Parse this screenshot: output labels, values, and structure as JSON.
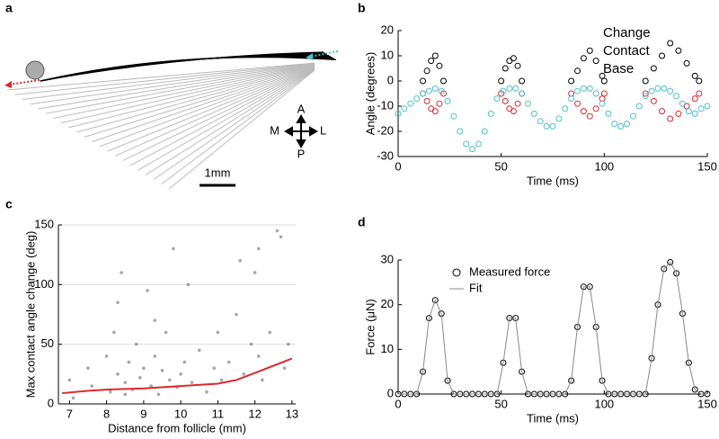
{
  "diagram": {
    "label": "a",
    "compass": {
      "up": "A",
      "down": "P",
      "left": "M",
      "right": "L"
    },
    "scale_bar": "1mm"
  },
  "chart_data": [
    {
      "type": "scatter",
      "label": "b",
      "xlabel": "Time (ms)",
      "ylabel": "Angle (degrees)",
      "xlim": [
        0,
        150
      ],
      "xticks": [
        0,
        50,
        100,
        150
      ],
      "ylim": [
        -30,
        20
      ],
      "yticks": [
        -30,
        -20,
        -10,
        0,
        10,
        20
      ],
      "legend": "top-right",
      "series": [
        {
          "name": "Change",
          "color": "#000000",
          "marker": "circle",
          "x": [
            12,
            14,
            16,
            18,
            20,
            22,
            50,
            52,
            54,
            56,
            58,
            60,
            84,
            87,
            90,
            93,
            96,
            99,
            100,
            120,
            124,
            128,
            132,
            136,
            140,
            144,
            146
          ],
          "values": [
            0,
            4,
            8,
            10,
            6,
            0,
            0,
            5,
            8,
            9,
            6,
            0,
            0,
            4,
            9,
            12,
            8,
            2,
            0,
            0,
            5,
            10,
            15,
            12,
            7,
            2,
            0
          ]
        },
        {
          "name": "Contact",
          "color": "#e0262b",
          "marker": "circle",
          "x": [
            12,
            14,
            16,
            18,
            20,
            22,
            50,
            52,
            54,
            56,
            58,
            60,
            84,
            87,
            90,
            93,
            96,
            99,
            100,
            120,
            124,
            128,
            132,
            136,
            140,
            144,
            146
          ],
          "values": [
            -5,
            -8,
            -11,
            -12,
            -9,
            -5,
            -5,
            -8,
            -11,
            -12,
            -9,
            -5,
            -5,
            -9,
            -12,
            -14,
            -11,
            -7,
            -5,
            -5,
            -8,
            -12,
            -15,
            -13,
            -10,
            -7,
            -5
          ]
        },
        {
          "name": "Base",
          "color": "#4bbfd0",
          "marker": "circle",
          "x": [
            0,
            3,
            6,
            9,
            12,
            15,
            18,
            21,
            24,
            27,
            30,
            33,
            36,
            39,
            42,
            45,
            48,
            51,
            54,
            57,
            60,
            63,
            66,
            69,
            72,
            75,
            78,
            81,
            84,
            87,
            90,
            93,
            96,
            99,
            102,
            105,
            108,
            111,
            114,
            117,
            120,
            123,
            126,
            129,
            132,
            135,
            138,
            141,
            144,
            147,
            150
          ],
          "values": [
            -13,
            -11,
            -9,
            -7,
            -5,
            -4,
            -3,
            -4,
            -8,
            -14,
            -20,
            -25,
            -27,
            -25,
            -20,
            -13,
            -7,
            -4,
            -3,
            -3,
            -5,
            -9,
            -13,
            -16,
            -18,
            -18,
            -15,
            -11,
            -7,
            -4,
            -3,
            -3,
            -5,
            -9,
            -13,
            -17,
            -18,
            -17,
            -14,
            -10,
            -6,
            -4,
            -3,
            -3,
            -4,
            -6,
            -9,
            -12,
            -13,
            -11,
            -10
          ]
        }
      ]
    },
    {
      "type": "scatter",
      "label": "c",
      "xlabel": "Distance from follicle (mm)",
      "ylabel": "Max contact angle change (deg)",
      "xlim": [
        6.7,
        13.1
      ],
      "xticks": [
        7,
        8,
        9,
        10,
        11,
        12,
        13
      ],
      "ylim": [
        0,
        150
      ],
      "yticks": [
        0,
        50,
        100,
        150
      ],
      "grid": true,
      "series": [
        {
          "color": "#000000",
          "marker": "dot",
          "x": [
            7,
            7.1,
            7.5,
            7.6,
            8,
            8.1,
            8.2,
            8.3,
            8.4,
            8.5,
            8.6,
            8.7,
            8.8,
            8.9,
            9,
            9.1,
            9.2,
            9.3,
            9.4,
            9.5,
            9.6,
            9.7,
            9.8,
            9.9,
            10,
            10.1,
            10.3,
            10.5,
            10.7,
            10.9,
            11,
            11.1,
            11.3,
            11.5,
            11.7,
            11.9,
            12,
            12.1,
            12.2,
            12.4,
            12.6,
            12.8,
            12.9,
            8.3,
            9.3,
            11.6,
            12.1,
            12.7,
            8.5,
            10.2
          ],
          "values": [
            20,
            5,
            30,
            15,
            40,
            10,
            60,
            25,
            110,
            18,
            35,
            12,
            50,
            22,
            30,
            95,
            15,
            40,
            8,
            28,
            60,
            20,
            130,
            14,
            25,
            35,
            18,
            45,
            10,
            30,
            60,
            20,
            35,
            75,
            25,
            50,
            110,
            40,
            20,
            60,
            145,
            30,
            50,
            85,
            70,
            120,
            130,
            140,
            8,
            100
          ]
        },
        {
          "color": "#e0262b",
          "marker": "line",
          "x": [
            6.8,
            7.5,
            8,
            9,
            10,
            11,
            11.5,
            12,
            12.5,
            13
          ],
          "values": [
            9,
            11,
            12,
            13,
            15,
            17,
            20,
            26,
            32,
            38
          ]
        }
      ]
    },
    {
      "type": "line",
      "label": "d",
      "xlabel": "Time (ms)",
      "ylabel": "Force (μN)",
      "xlim": [
        0,
        150
      ],
      "xticks": [
        0,
        50,
        100,
        150
      ],
      "ylim": [
        0,
        30
      ],
      "yticks": [
        0,
        10,
        20,
        30
      ],
      "legend": "top-left",
      "x": [
        0,
        3,
        6,
        9,
        12,
        15,
        18,
        21,
        24,
        27,
        30,
        33,
        36,
        39,
        42,
        45,
        48,
        51,
        54,
        57,
        60,
        63,
        66,
        69,
        72,
        75,
        78,
        81,
        84,
        87,
        90,
        93,
        96,
        99,
        102,
        105,
        108,
        111,
        114,
        117,
        120,
        123,
        126,
        129,
        132,
        135,
        138,
        141,
        144,
        147,
        150
      ],
      "series": [
        {
          "name": "Measured force",
          "color": "#000000",
          "marker": "circle",
          "values": [
            0,
            0,
            0,
            0,
            5,
            17,
            21,
            18,
            3,
            0,
            0,
            0,
            0,
            0,
            0,
            0,
            0,
            7,
            17,
            17,
            5,
            0,
            0,
            0,
            0,
            0,
            0,
            0,
            3,
            15,
            24,
            24,
            15,
            3,
            0,
            0,
            0,
            0,
            0,
            0,
            0,
            8,
            20,
            28,
            29.5,
            27,
            18,
            7,
            1,
            0,
            0
          ]
        },
        {
          "name": "Fit",
          "color": "#888888",
          "marker": "line",
          "values": [
            0,
            0,
            0,
            0,
            5,
            17,
            21,
            18,
            3,
            0,
            0,
            0,
            0,
            0,
            0,
            0,
            0,
            7,
            17,
            17,
            5,
            0,
            0,
            0,
            0,
            0,
            0,
            0,
            3,
            15,
            24,
            24,
            15,
            3,
            0,
            0,
            0,
            0,
            0,
            0,
            0,
            8,
            20,
            28,
            29.5,
            27,
            18,
            7,
            1,
            0,
            0
          ]
        }
      ]
    }
  ]
}
